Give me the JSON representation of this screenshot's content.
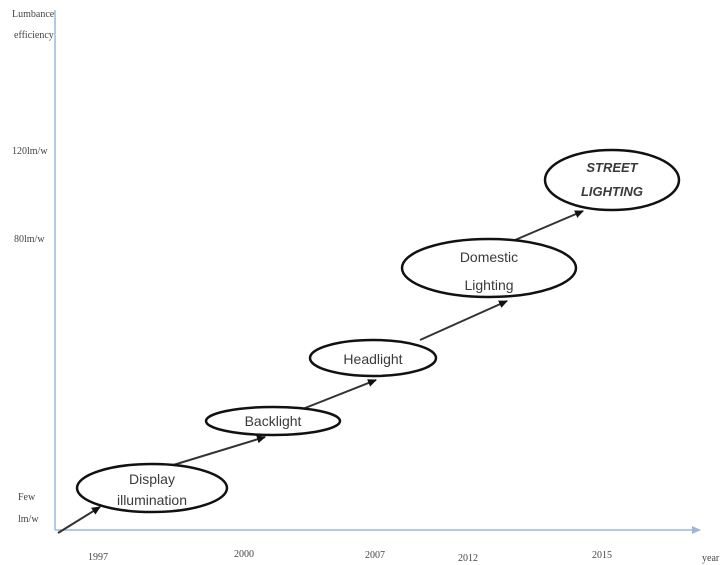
{
  "y_axis": {
    "title_line1": "Lumbance",
    "title_line2": "efficiency",
    "ticks": [
      {
        "label": "120lm/w"
      },
      {
        "label": "80lm/w"
      },
      {
        "label_line1": "Few",
        "label_line2": "lm/w"
      }
    ]
  },
  "x_axis": {
    "ticks": [
      "1997",
      "2000",
      "2007",
      "2012",
      "2015"
    ],
    "end_label": "year"
  },
  "stages": [
    {
      "line1": "Display",
      "line2": "illumination"
    },
    {
      "line1": "Backlight",
      "line2": ""
    },
    {
      "line1": "Headlight",
      "line2": ""
    },
    {
      "line1": "Domestic",
      "line2": "Lighting"
    },
    {
      "line1": "STREET",
      "line2": "LIGHTING"
    }
  ],
  "colors": {
    "axis": "#9ab8d8",
    "ellipse_stroke": "#111111",
    "arrow": "#333333"
  }
}
